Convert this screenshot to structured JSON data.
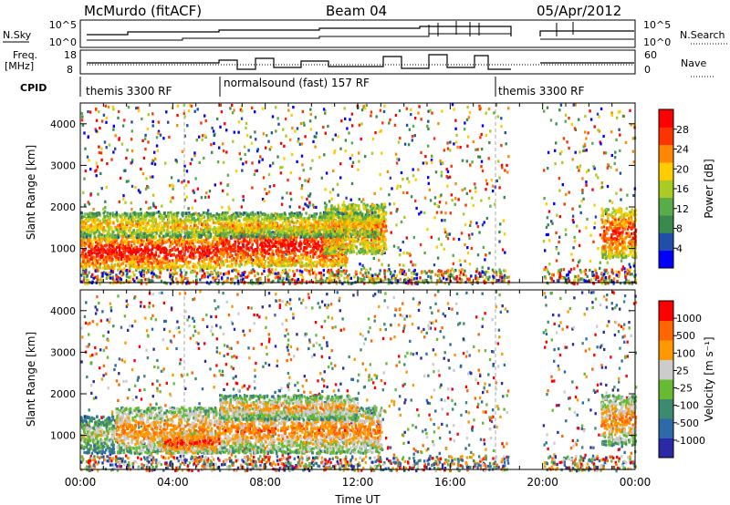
{
  "header": {
    "station": "McMurdo (fitACF)",
    "beam": "Beam 04",
    "date": "05/Apr/2012"
  },
  "status_panels": {
    "left_labels": {
      "nsky": "N.Sky",
      "freq": "Freq.",
      "freq_unit": "[MHz]",
      "cpid": "CPID"
    },
    "right_labels": {
      "nsearch": "N.Search",
      "nave": "Nave"
    },
    "nsky_ticks": [
      "10^5",
      "10^0"
    ],
    "nsearch_ticks": [
      "10^5",
      "10^0"
    ],
    "freq_ticks": [
      "18",
      "8"
    ],
    "nave_ticks": [
      "60",
      "0"
    ],
    "cpid_segments": [
      {
        "label": "themis 3300 RF",
        "start_hour": 0,
        "end_hour": 6
      },
      {
        "label": "normalsound (fast) 157 RF",
        "start_hour": 6,
        "end_hour": 18
      },
      {
        "label": "themis 3300 RF",
        "start_hour": 18,
        "end_hour": 24
      }
    ]
  },
  "colorbars": {
    "power": {
      "label": "Power [dB]",
      "ticks": [
        "28",
        "24",
        "20",
        "16",
        "12",
        "8",
        "4"
      ]
    },
    "velocity": {
      "label": "Velocity [m s⁻¹]",
      "ticks": [
        "1000",
        "500",
        "100",
        "25",
        "-25",
        "-100",
        "-500",
        "-1000"
      ]
    }
  },
  "colors": {
    "power_scale": [
      "#0000ff",
      "#1f4fa8",
      "#3a8a4e",
      "#5aab4a",
      "#aacc22",
      "#ffcc00",
      "#ff8800",
      "#ff3300",
      "#ff0000"
    ],
    "velocity_scale": [
      "#2a2aa8",
      "#2f6aa8",
      "#3c8a70",
      "#66bb33",
      "#cccccc",
      "#ff9900",
      "#ff6600",
      "#ff0000"
    ]
  },
  "chart_data": [
    {
      "type": "heatmap",
      "title": "Power",
      "ylabel": "Slant Range [km]",
      "xlabel": "",
      "y_ticks": [
        "1000",
        "2000",
        "3000",
        "4000"
      ],
      "xlim": [
        0,
        24
      ],
      "ylim": [
        180,
        4500
      ],
      "gap_hours": [
        18.5,
        20.0
      ],
      "regions": [
        {
          "t0": 0.0,
          "t1": 6.0,
          "r0": 550,
          "r1": 1350,
          "level": 0.95
        },
        {
          "t0": 6.0,
          "t1": 11.5,
          "r0": 600,
          "r1": 1600,
          "level": 0.92
        },
        {
          "t0": 10.5,
          "t1": 13.2,
          "r0": 900,
          "r1": 2100,
          "level": 0.7
        },
        {
          "t0": 0.0,
          "t1": 13.0,
          "r0": 1300,
          "r1": 1900,
          "level": 0.45
        },
        {
          "t0": 22.5,
          "t1": 24.0,
          "r0": 800,
          "r1": 2000,
          "level": 0.8
        }
      ]
    },
    {
      "type": "heatmap",
      "title": "Velocity",
      "ylabel": "Slant Range [km]",
      "xlabel": "Time UT",
      "y_ticks": [
        "1000",
        "2000",
        "3000",
        "4000"
      ],
      "x_ticks": [
        "00:00",
        "04:00",
        "08:00",
        "12:00",
        "16:00",
        "20:00",
        "00:00"
      ],
      "xlim": [
        0,
        24
      ],
      "ylim": [
        180,
        4500
      ],
      "gap_hours": [
        18.5,
        20.0
      ],
      "regions": [
        {
          "t0": 0.0,
          "t1": 1.5,
          "r0": 600,
          "r1": 1500,
          "level": 0.25
        },
        {
          "t0": 1.5,
          "t1": 13.0,
          "r0": 600,
          "r1": 1700,
          "level": 0.62
        },
        {
          "t0": 3.5,
          "t1": 6.0,
          "r0": 600,
          "r1": 1100,
          "level": 0.9
        },
        {
          "t0": 6.0,
          "t1": 12.0,
          "r0": 1400,
          "r1": 2000,
          "level": 0.5
        },
        {
          "t0": 22.5,
          "t1": 24.0,
          "r0": 800,
          "r1": 2000,
          "level": 0.6
        }
      ]
    }
  ]
}
